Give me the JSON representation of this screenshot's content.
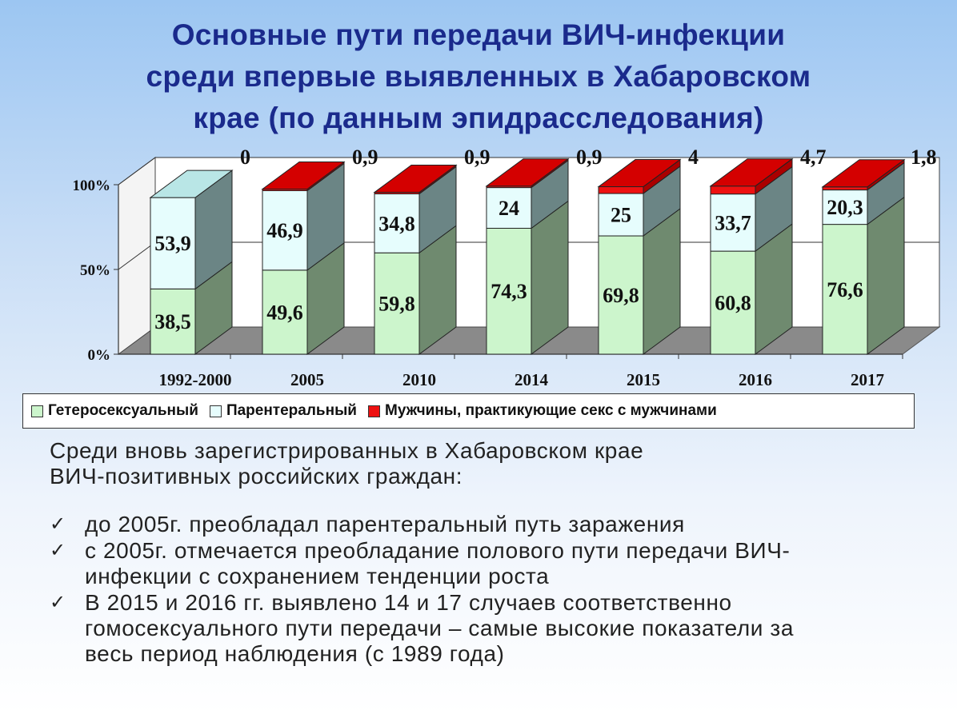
{
  "title_lines": [
    "Основные пути передачи ВИЧ-инфекции",
    "среди впервые выявленных в Хабаровском",
    "крае (по данным эпидрасследования)"
  ],
  "chart_data": {
    "type": "bar",
    "stacked": true,
    "three_d": true,
    "categories": [
      "1992-2000",
      "2005",
      "2010",
      "2014",
      "2015",
      "2016",
      "2017"
    ],
    "series": [
      {
        "name": "Гетеросексуальный",
        "values": [
          38.5,
          49.6,
          59.8,
          74.3,
          69.8,
          60.8,
          76.6
        ],
        "labels": [
          "38,5",
          "49,6",
          "59,8",
          "74,3",
          "69,8",
          "60,8",
          "76,6"
        ],
        "color": "#ccf5cc"
      },
      {
        "name": "Парентеральный",
        "values": [
          53.9,
          46.9,
          34.8,
          24,
          25,
          33.7,
          20.3
        ],
        "labels": [
          "53,9",
          "46,9",
          "34,8",
          "24",
          "25",
          "33,7",
          "20,3"
        ],
        "color": "#e6fdfd"
      },
      {
        "name": "Мужчины, практикующие секс с мужчинами",
        "values": [
          0,
          0.9,
          0.9,
          0.9,
          4,
          4.7,
          1.8
        ],
        "labels": [
          "0",
          "0,9",
          "0,9",
          "0,9",
          "4",
          "4,7",
          "1,8"
        ],
        "color": "#ee1111"
      }
    ],
    "yticks": [
      "0%",
      "50%",
      "100%"
    ],
    "ylim": [
      0,
      100
    ],
    "legend_position": "bottom"
  },
  "bottom_text": {
    "intro": [
      "Среди вновь зарегистрированных в Хабаровском крае",
      "ВИЧ-позитивных российских граждан:"
    ],
    "check_symbol": "✓",
    "bullets": [
      {
        "lines": [
          "до 2005г. преобладал парентеральный путь заражения"
        ]
      },
      {
        "lines": [
          "с 2005г. отмечается преобладание полового пути передачи ВИЧ-",
          "инфекции с сохранением тенденции роста"
        ]
      },
      {
        "lines": [
          "В 2015 и 2016 гг. выявлено 14 и 17 случаев соответственно",
          "гомосексуального пути передачи – самые высокие показатели за",
          "весь период наблюдения (с 1989 года)"
        ]
      }
    ]
  }
}
